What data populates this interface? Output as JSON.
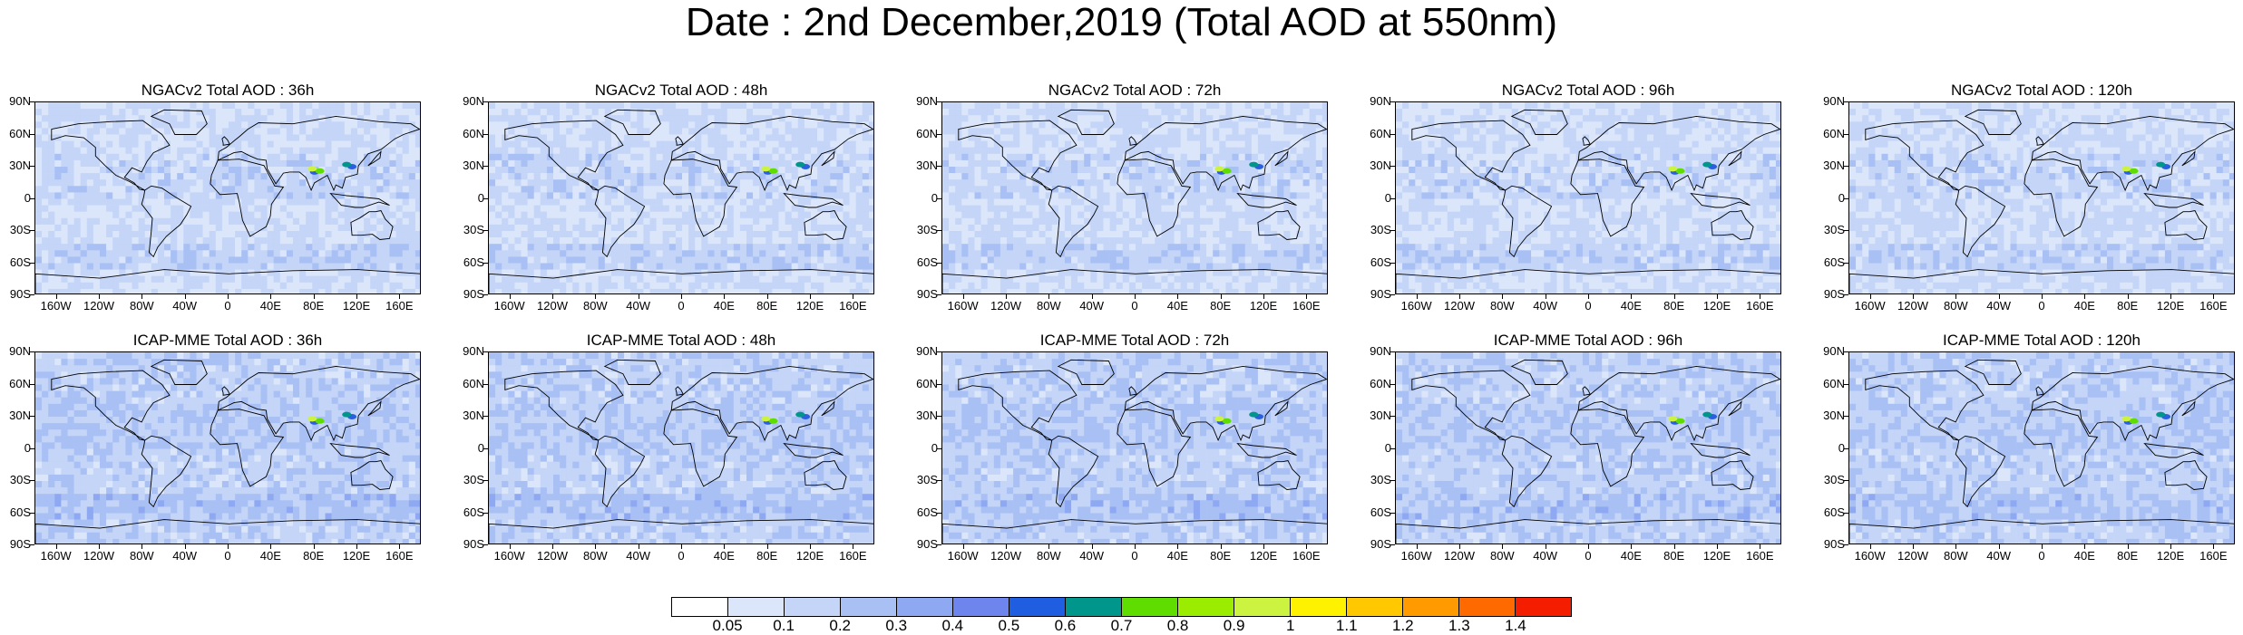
{
  "title": "Date : 2nd December,2019 (Total AOD at 550nm)",
  "lat_labels": [
    "90N",
    "60N",
    "30N",
    "0",
    "30S",
    "60S",
    "90S"
  ],
  "lon_labels": [
    "160W",
    "120W",
    "80W",
    "40W",
    "0",
    "40E",
    "80E",
    "120E",
    "160E"
  ],
  "panels": [
    {
      "title": "NGACv2 Total AOD : 36h"
    },
    {
      "title": "NGACv2 Total AOD : 48h"
    },
    {
      "title": "NGACv2 Total AOD : 72h"
    },
    {
      "title": "NGACv2 Total AOD : 96h"
    },
    {
      "title": "NGACv2 Total AOD : 120h"
    },
    {
      "title": "ICAP-MME Total AOD : 36h"
    },
    {
      "title": "ICAP-MME Total AOD : 48h"
    },
    {
      "title": "ICAP-MME Total AOD : 72h"
    },
    {
      "title": "ICAP-MME Total AOD : 96h"
    },
    {
      "title": "ICAP-MME Total AOD : 120h"
    }
  ],
  "colorbar": {
    "labels": [
      "0.05",
      "0.1",
      "0.2",
      "0.3",
      "0.4",
      "0.5",
      "0.6",
      "0.7",
      "0.8",
      "0.9",
      "1",
      "1.1",
      "1.2",
      "1.3",
      "1.4"
    ],
    "colors": [
      "#ffffff",
      "#dbe6fb",
      "#c4d5f8",
      "#a9c0f5",
      "#8ea9f2",
      "#6f85ee",
      "#1f5ee0",
      "#00968c",
      "#5fdc00",
      "#9aec00",
      "#cbf33f",
      "#fff200",
      "#ffc800",
      "#ff9a00",
      "#ff6a00",
      "#f51d00"
    ]
  }
}
